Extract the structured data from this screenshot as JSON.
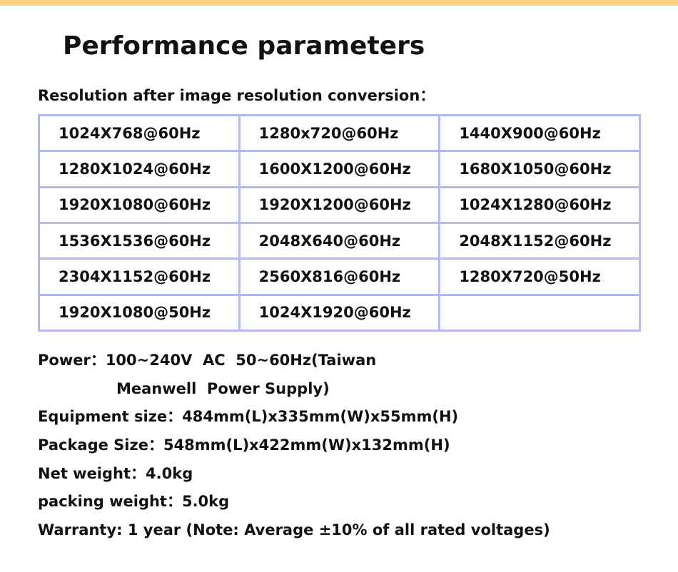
{
  "title": "Performance parameters",
  "subtitle": "Resolution after image resolution conversion：",
  "table": {
    "rows": [
      [
        "1024X768@60Hz",
        "1280x720@60Hz",
        "1440X900@60Hz"
      ],
      [
        "1280X1024@60Hz",
        "1600X1200@60Hz",
        "1680X1050@60Hz"
      ],
      [
        "1920X1080@60Hz",
        "1920X1200@60Hz",
        "1024X1280@60Hz"
      ],
      [
        "1536X1536@60Hz",
        "2048X640@60Hz",
        "2048X1152@60Hz"
      ],
      [
        "2304X1152@60Hz",
        "2560X816@60Hz",
        "1280X720@50Hz"
      ],
      [
        "1920X1080@50Hz",
        "1024X1920@60Hz"
      ]
    ]
  },
  "specs": [
    "Power：100~240V  AC  50~60Hz(Taiwan",
    "Meanwell  Power Supply)",
    "Equipment size：484mm(L)x335mm(W)x55mm(H)",
    "Package Size：548mm(L)x422mm(W)x132mm(H)",
    "Net weight：4.0kg",
    "packing weight：5.0kg",
    "Warranty: 1 year (Note: Average ±10% of all rated voltages)"
  ]
}
